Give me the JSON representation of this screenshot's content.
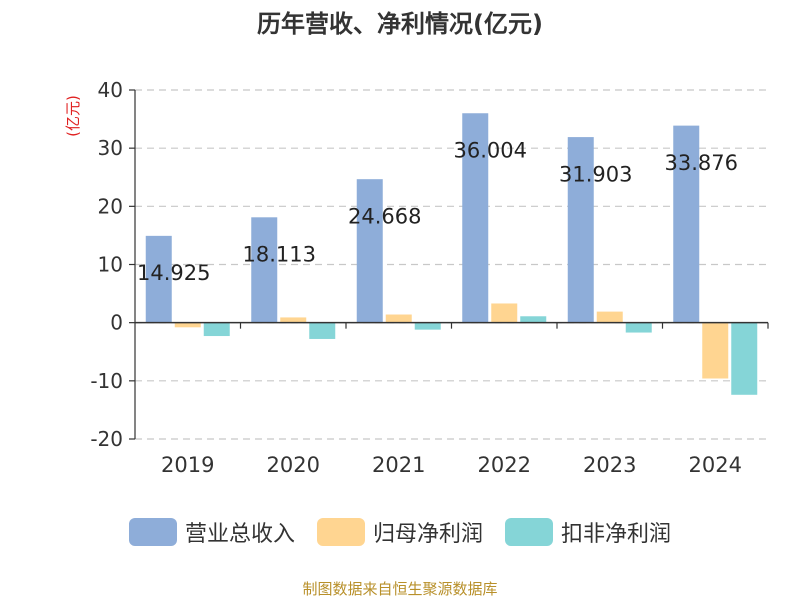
{
  "chart_data": {
    "type": "bar",
    "title": "历年营收、净利情况(亿元)",
    "ylabel": "(亿元)",
    "xlabel": "",
    "ylim": [
      -20,
      40
    ],
    "yticks": [
      -20,
      -10,
      0,
      10,
      20,
      30,
      40
    ],
    "categories": [
      "2019",
      "2020",
      "2021",
      "2022",
      "2023",
      "2024"
    ],
    "series": [
      {
        "name": "营业总收入",
        "color": "#8eadd9",
        "values": [
          14.925,
          18.113,
          24.668,
          36.004,
          31.903,
          33.876
        ],
        "labels": [
          "14.925",
          "18.113",
          "24.668",
          "36.004",
          "31.903",
          "33.876"
        ]
      },
      {
        "name": "归母净利润",
        "color": "#ffd591",
        "values": [
          -0.8,
          0.9,
          1.4,
          3.3,
          1.9,
          -9.6
        ]
      },
      {
        "name": "扣非净利润",
        "color": "#85d5d7",
        "values": [
          -2.3,
          -2.8,
          -1.2,
          1.1,
          -1.7,
          -12.4
        ]
      }
    ],
    "grid": true,
    "legend_position": "bottom"
  },
  "source_note": "制图数据来自恒生聚源数据库"
}
